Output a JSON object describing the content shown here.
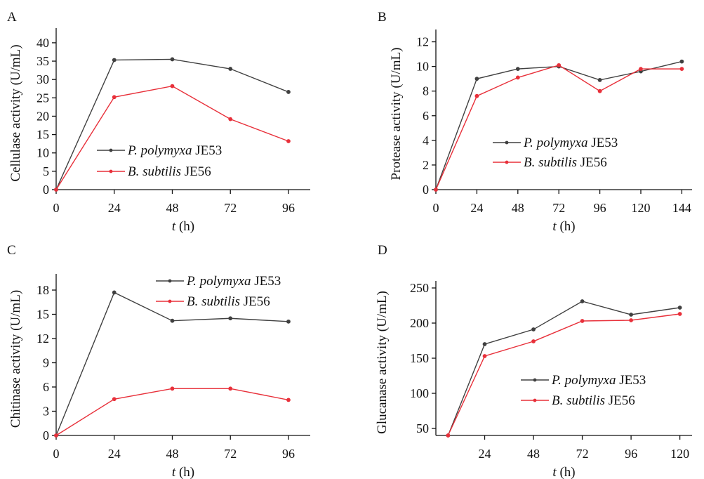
{
  "chart_data": [
    {
      "panel": "A",
      "type": "line",
      "ylabel": "Cellulase activity (U/mL)",
      "xlabel": "t (h)",
      "x": [
        0,
        24,
        48,
        72,
        96
      ],
      "xticks": [
        0,
        24,
        48,
        72,
        96
      ],
      "yticks": [
        0,
        5,
        10,
        15,
        20,
        25,
        30,
        35,
        40
      ],
      "ylim": [
        0,
        44
      ],
      "series": [
        {
          "name": "P. polymyxa JE53",
          "color": "#404040",
          "values": [
            0,
            35.3,
            35.5,
            32.9,
            26.6
          ]
        },
        {
          "name": "B. subtilis JE56",
          "color": "#e8303a",
          "values": [
            0,
            25.2,
            28.2,
            19.2,
            13.2
          ]
        }
      ]
    },
    {
      "panel": "B",
      "type": "line",
      "ylabel": "Protease activity (U/mL)",
      "xlabel": "t (h)",
      "x": [
        0,
        24,
        48,
        72,
        96,
        120,
        144
      ],
      "xticks": [
        0,
        24,
        48,
        72,
        96,
        120,
        144
      ],
      "yticks": [
        0,
        2,
        4,
        6,
        8,
        10,
        12
      ],
      "ylim": [
        0,
        13
      ],
      "series": [
        {
          "name": "P. polymyxa JE53",
          "color": "#404040",
          "values": [
            0,
            9.0,
            9.8,
            10.0,
            8.9,
            9.6,
            10.4
          ]
        },
        {
          "name": "B. subtilis JE56",
          "color": "#e8303a",
          "values": [
            0,
            7.6,
            9.1,
            10.1,
            8.0,
            9.8,
            9.8
          ]
        }
      ]
    },
    {
      "panel": "C",
      "type": "line",
      "ylabel": "Chitinase activity (U/mL)",
      "xlabel": "t (h)",
      "x": [
        0,
        24,
        48,
        72,
        96
      ],
      "xticks": [
        0,
        24,
        48,
        72,
        96
      ],
      "yticks": [
        0,
        3,
        6,
        9,
        12,
        15,
        18
      ],
      "ylim": [
        0,
        20
      ],
      "series": [
        {
          "name": "P. polymyxa JE53",
          "color": "#404040",
          "values": [
            0,
            17.7,
            14.2,
            14.5,
            14.1
          ]
        },
        {
          "name": "B. subtilis JE56",
          "color": "#e8303a",
          "values": [
            0,
            4.5,
            5.8,
            5.8,
            4.4
          ]
        }
      ]
    },
    {
      "panel": "D",
      "type": "line",
      "ylabel": "Glucanase activity (U/mL)",
      "xlabel": "t (h)",
      "x": [
        6,
        24,
        48,
        72,
        96,
        120
      ],
      "xticks": [
        24,
        48,
        72,
        96,
        120
      ],
      "yticks": [
        50,
        100,
        150,
        200,
        250
      ],
      "ylim": [
        40,
        260
      ],
      "xlim": [
        0,
        126
      ],
      "series": [
        {
          "name": "P. polymyxa JE53",
          "color": "#404040",
          "values": [
            40,
            170,
            191,
            231,
            212,
            222
          ]
        },
        {
          "name": "B. subtilis JE56",
          "color": "#e8303a",
          "values": [
            40,
            153,
            174,
            203,
            204,
            213
          ]
        }
      ]
    }
  ]
}
